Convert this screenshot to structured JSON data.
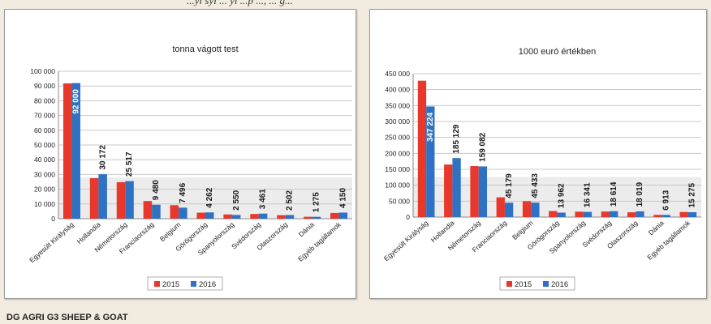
{
  "top_caption": "...yl syl     ... yl     ...p     ..., ... g...",
  "footer": "DG AGRI G3 SHEEP & GOAT",
  "colors": {
    "s2015": "#e8382b",
    "s2016": "#2f72c4"
  },
  "chart_data": [
    {
      "type": "bar",
      "title": "tonna vágott test",
      "categories": [
        "Egyesült Királyság",
        "Hollandia",
        "Németország",
        "Franciaország",
        "Belgium",
        "Görögország",
        "Spanyolország",
        "Svédország",
        "Olaszország",
        "Dánia",
        "Egyéb tagállamok"
      ],
      "series": [
        {
          "name": "2015",
          "values": [
            91800,
            27500,
            24800,
            12000,
            9200,
            4100,
            2900,
            3200,
            2400,
            1300,
            3900
          ]
        },
        {
          "name": "2016",
          "values": [
            92000,
            30172,
            25517,
            9480,
            7496,
            4262,
            2550,
            3461,
            2502,
            1275,
            4150
          ]
        }
      ],
      "data_labels": [
        "92 000",
        "30 172",
        "25 517",
        "9 480",
        "7 496",
        "4 262",
        "2 550",
        "3 461",
        "2 502",
        "1 275",
        "4 150"
      ],
      "yticks": [
        "0",
        "10 000",
        "20 000",
        "30 000",
        "40 000",
        "50 000",
        "60 000",
        "70 000",
        "80 000",
        "90 000",
        "100 000"
      ],
      "ylim": [
        0,
        100000
      ],
      "legend_position": "bottom",
      "grid": true
    },
    {
      "type": "bar",
      "title": "1000 euró értékben",
      "categories": [
        "Egyesült Királyság",
        "Hollandia",
        "Németország",
        "Franciaország",
        "Belgium",
        "Görögország",
        "Spanyolország",
        "Svédország",
        "Olaszország",
        "Dánia",
        "Egyéb tagállamok"
      ],
      "series": [
        {
          "name": "2015",
          "values": [
            428000,
            165000,
            160000,
            62000,
            50000,
            19000,
            17000,
            17500,
            15000,
            7000,
            16000
          ]
        },
        {
          "name": "2016",
          "values": [
            347224,
            185129,
            159082,
            45179,
            45433,
            13962,
            16341,
            18614,
            18019,
            6913,
            15275
          ]
        }
      ],
      "data_labels": [
        "347 224",
        "185 129",
        "159 082",
        "45 179",
        "45 433",
        "13 962",
        "16 341",
        "18 614",
        "18 019",
        "6 913",
        "15 275"
      ],
      "yticks": [
        "0",
        "50 000",
        "100 000",
        "150 000",
        "200 000",
        "250 000",
        "300 000",
        "350 000",
        "400 000",
        "450 000"
      ],
      "ylim": [
        0,
        450000
      ],
      "legend_position": "bottom",
      "grid": true
    }
  ]
}
